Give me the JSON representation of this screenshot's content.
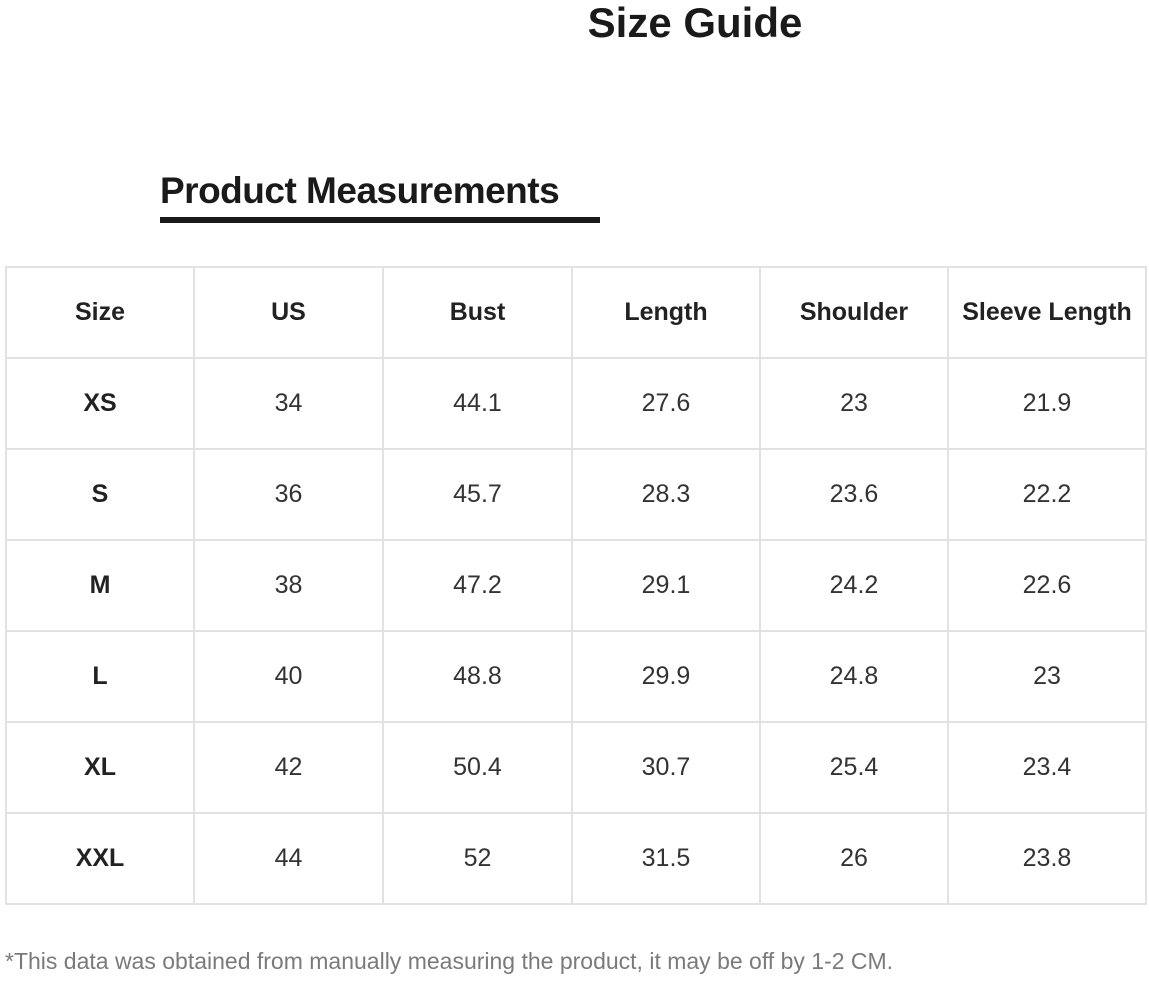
{
  "header": {
    "title": "Size Guide",
    "subtitle": "Product Measurements"
  },
  "table": {
    "columns": [
      "Size",
      "US",
      "Bust",
      "Length",
      "Shoulder",
      "Sleeve Length"
    ],
    "rows": [
      [
        "XS",
        34,
        44.1,
        27.6,
        23,
        21.9
      ],
      [
        "S",
        36,
        45.7,
        28.3,
        23.6,
        22.2
      ],
      [
        "M",
        38,
        47.2,
        29.1,
        24.2,
        22.6
      ],
      [
        "L",
        40,
        48.8,
        29.9,
        24.8,
        23
      ],
      [
        "XL",
        42,
        50.4,
        30.7,
        25.4,
        23.4
      ],
      [
        "XXL",
        44,
        52,
        31.5,
        26,
        23.8
      ]
    ]
  },
  "footnote": "*This data was obtained from manually measuring the product, it may be off by 1-2 CM."
}
